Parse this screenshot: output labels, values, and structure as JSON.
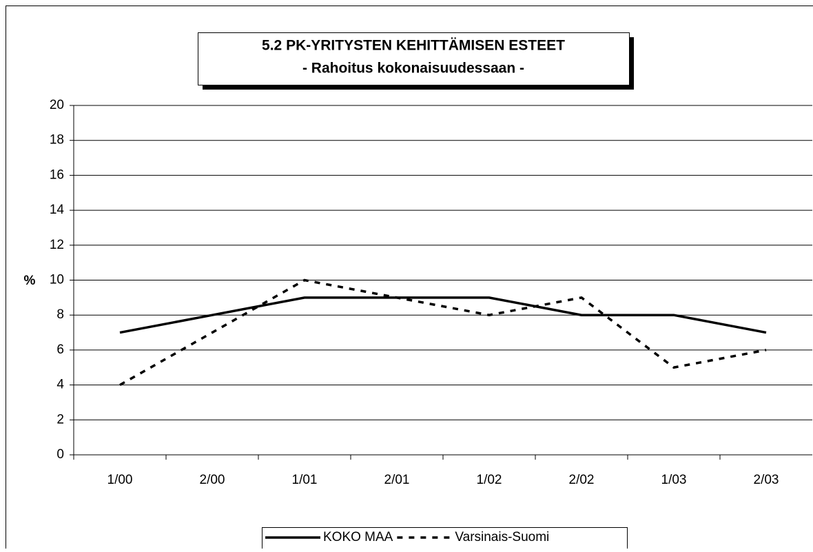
{
  "chart_data": {
    "type": "line",
    "title": "5.2 PK-YRITYSTEN KEHITTÄMISEN ESTEET",
    "subtitle": "- Rahoitus kokonaisuudessaan -",
    "y_label": "%",
    "categories": [
      "1/00",
      "2/00",
      "1/01",
      "2/01",
      "1/02",
      "2/02",
      "1/03",
      "2/03"
    ],
    "series": [
      {
        "name": "KOKO MAA",
        "color": "#000000",
        "line_style": "solid",
        "values": [
          7,
          8,
          9,
          9,
          9,
          8,
          8,
          7
        ]
      },
      {
        "name": "Varsinais-Suomi",
        "color": "#000000",
        "line_style": "dashed",
        "values": [
          4,
          7,
          10,
          9,
          8,
          9,
          5,
          6
        ]
      }
    ],
    "ylim": [
      0,
      20
    ],
    "yticks": [
      0,
      2,
      4,
      6,
      8,
      10,
      12,
      14,
      16,
      18,
      20
    ],
    "grid": true,
    "legend": "bottom"
  }
}
